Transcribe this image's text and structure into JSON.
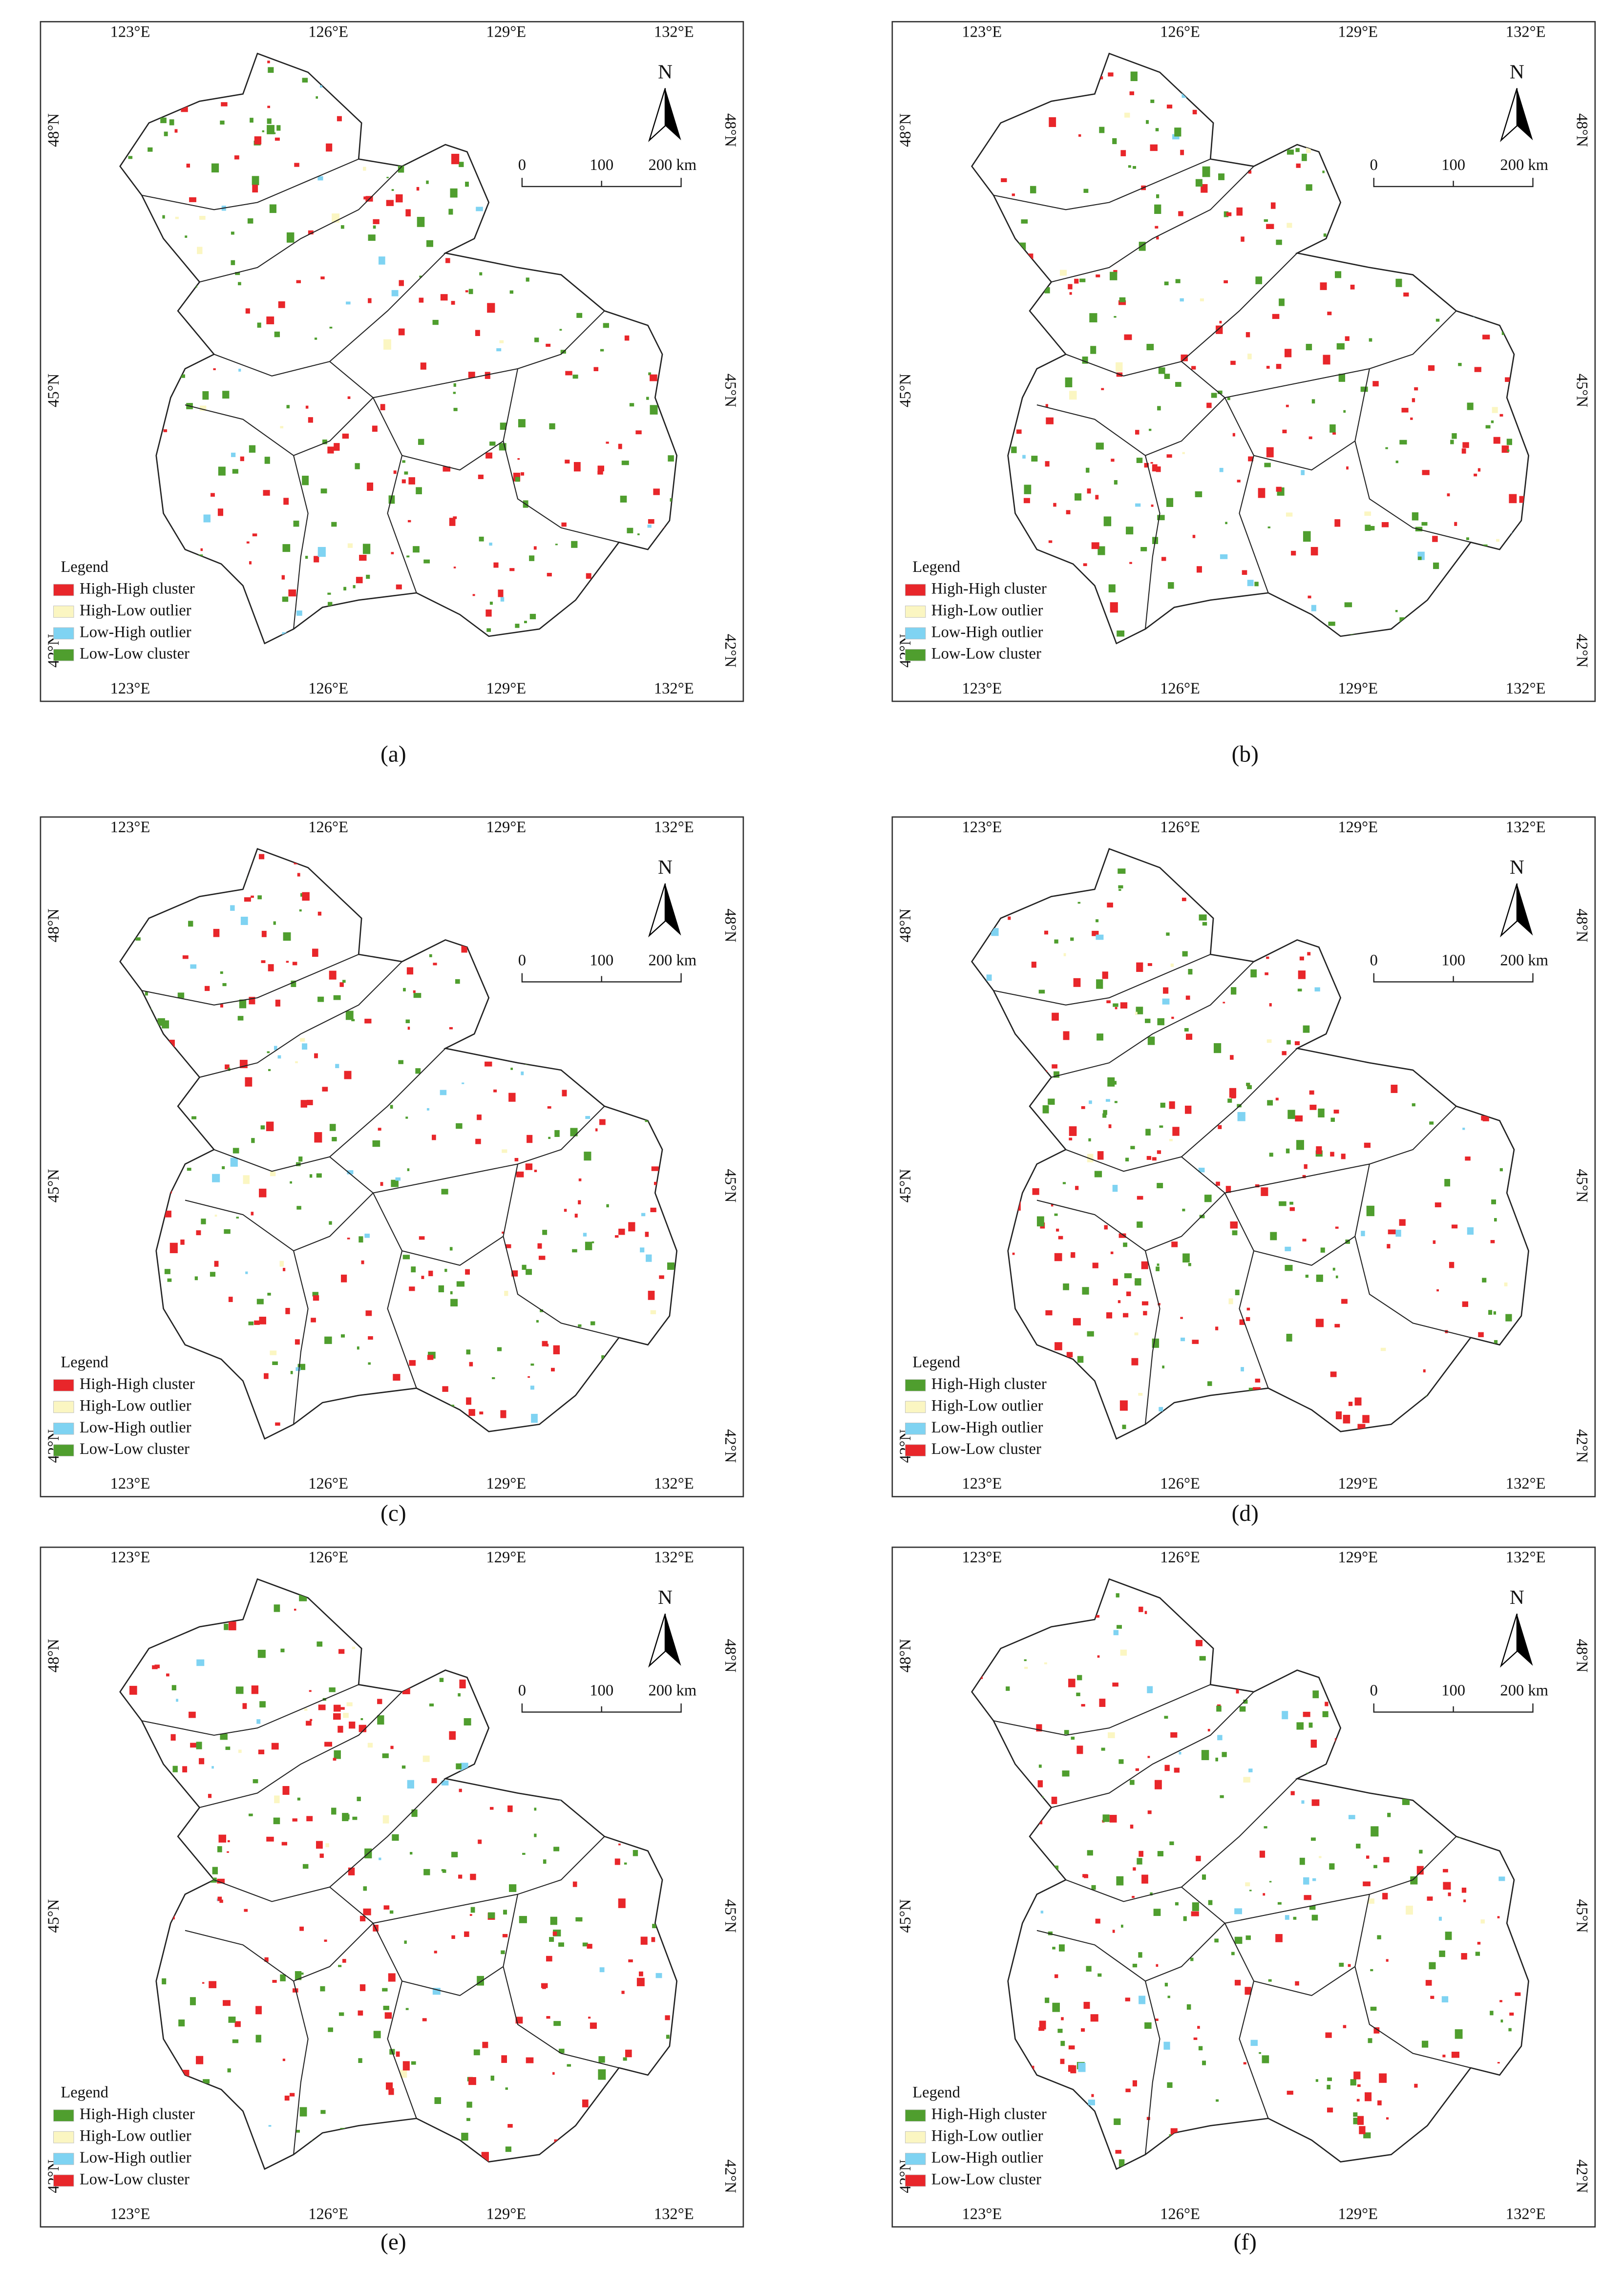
{
  "graticule": {
    "longitudes": [
      "123°E",
      "126°E",
      "129°E",
      "132°E"
    ],
    "latitudes": [
      "48°N",
      "45°N",
      "42°N"
    ]
  },
  "north_arrow": "N",
  "scale_bar": [
    "0",
    "100",
    "200 km"
  ],
  "legend_title": "Legend",
  "panels": [
    {
      "caption": "(a)",
      "legend": [
        {
          "name": "High-High cluster",
          "color": "#e8262a"
        },
        {
          "name": "High-Low outlier",
          "color": "#fbf6c2"
        },
        {
          "name": "Low-High outlier",
          "color": "#7fd3f2"
        },
        {
          "name": "Low-Low cluster",
          "color": "#4f9e2e"
        }
      ]
    },
    {
      "caption": "(b)",
      "legend": [
        {
          "name": "High-High cluster",
          "color": "#e8262a"
        },
        {
          "name": "High-Low outlier",
          "color": "#fbf6c2"
        },
        {
          "name": "Low-High outlier",
          "color": "#7fd3f2"
        },
        {
          "name": "Low-Low cluster",
          "color": "#4f9e2e"
        }
      ]
    },
    {
      "caption": "(c)",
      "legend": [
        {
          "name": "High-High cluster",
          "color": "#e8262a"
        },
        {
          "name": "High-Low outlier",
          "color": "#fbf6c2"
        },
        {
          "name": "Low-High outlier",
          "color": "#7fd3f2"
        },
        {
          "name": "Low-Low cluster",
          "color": "#4f9e2e"
        }
      ]
    },
    {
      "caption": "(d)",
      "legend": [
        {
          "name": "High-High cluster",
          "color": "#4f9e2e"
        },
        {
          "name": "High-Low outlier",
          "color": "#fbf6c2"
        },
        {
          "name": "Low-High outlier",
          "color": "#7fd3f2"
        },
        {
          "name": "Low-Low cluster",
          "color": "#e8262a"
        }
      ]
    },
    {
      "caption": "(e)",
      "legend": [
        {
          "name": "High-High cluster",
          "color": "#4f9e2e"
        },
        {
          "name": "High-Low outlier",
          "color": "#fbf6c2"
        },
        {
          "name": "Low-High outlier",
          "color": "#7fd3f2"
        },
        {
          "name": "Low-Low cluster",
          "color": "#e8262a"
        }
      ]
    },
    {
      "caption": "(f)",
      "legend": [
        {
          "name": "High-High cluster",
          "color": "#4f9e2e"
        },
        {
          "name": "High-Low outlier",
          "color": "#fbf6c2"
        },
        {
          "name": "Low-High outlier",
          "color": "#7fd3f2"
        },
        {
          "name": "Low-Low cluster",
          "color": "#e8262a"
        }
      ]
    }
  ]
}
